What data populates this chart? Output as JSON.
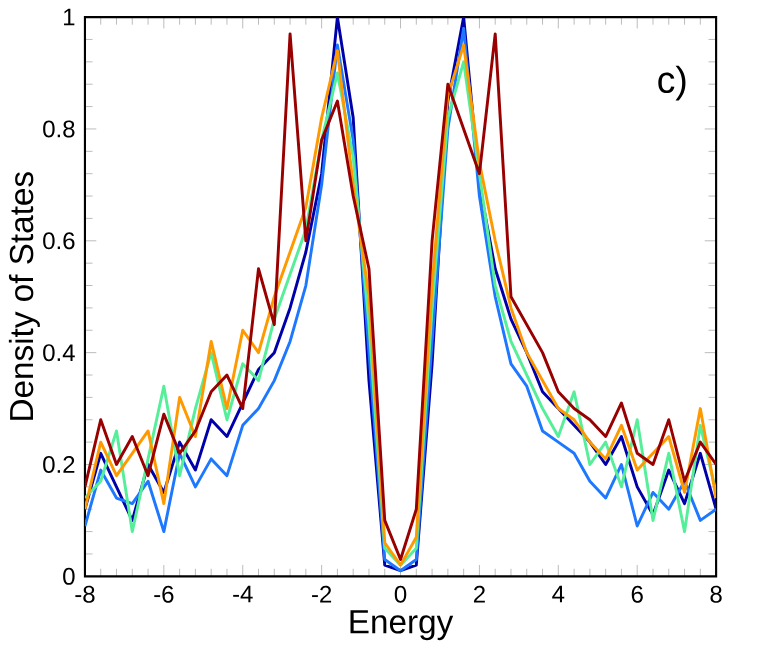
{
  "chart_data": {
    "type": "line",
    "xlabel": "Energy",
    "ylabel": "Density of States",
    "annotations": [
      "c)"
    ],
    "x": [
      -8,
      -7.6,
      -7.2,
      -6.8,
      -6.4,
      -6,
      -5.6,
      -5.2,
      -4.8,
      -4.4,
      -4,
      -3.6,
      -3.2,
      -2.8,
      -2.4,
      -2,
      -1.6,
      -1.2,
      -0.8,
      -0.4,
      0,
      0.4,
      0.8,
      1.2,
      1.6,
      2,
      2.4,
      2.8,
      3.2,
      3.6,
      4,
      4.4,
      4.8,
      5.2,
      5.6,
      6,
      6.4,
      6.8,
      7.2,
      7.6,
      8
    ],
    "series": [
      {
        "color": "#0000aa",
        "values": [
          0.12,
          0.22,
          0.16,
          0.1,
          0.2,
          0.15,
          0.24,
          0.19,
          0.28,
          0.25,
          0.31,
          0.37,
          0.4,
          0.48,
          0.58,
          0.72,
          1.0,
          0.82,
          0.35,
          0.02,
          0.01,
          0.02,
          0.38,
          0.85,
          1.0,
          0.7,
          0.55,
          0.46,
          0.4,
          0.33,
          0.3,
          0.27,
          0.24,
          0.2,
          0.25,
          0.16,
          0.11,
          0.19,
          0.13,
          0.22,
          0.12
        ]
      },
      {
        "color": "#1e78ff",
        "values": [
          0.09,
          0.19,
          0.14,
          0.13,
          0.17,
          0.08,
          0.22,
          0.16,
          0.21,
          0.18,
          0.27,
          0.3,
          0.35,
          0.42,
          0.52,
          0.7,
          0.95,
          0.78,
          0.4,
          0.03,
          0.01,
          0.03,
          0.42,
          0.8,
          0.98,
          0.68,
          0.5,
          0.38,
          0.34,
          0.26,
          0.24,
          0.22,
          0.17,
          0.14,
          0.2,
          0.09,
          0.15,
          0.12,
          0.17,
          0.1,
          0.12
        ]
      },
      {
        "color": "#55ee99",
        "values": [
          0.14,
          0.17,
          0.26,
          0.08,
          0.21,
          0.34,
          0.18,
          0.3,
          0.4,
          0.28,
          0.38,
          0.35,
          0.46,
          0.54,
          0.62,
          0.78,
          0.9,
          0.75,
          0.45,
          0.05,
          0.02,
          0.05,
          0.48,
          0.82,
          0.92,
          0.72,
          0.52,
          0.42,
          0.36,
          0.3,
          0.25,
          0.33,
          0.2,
          0.24,
          0.16,
          0.28,
          0.1,
          0.22,
          0.08,
          0.27,
          0.15
        ]
      },
      {
        "color": "#ff9900",
        "values": [
          0.12,
          0.24,
          0.18,
          0.22,
          0.26,
          0.13,
          0.32,
          0.25,
          0.42,
          0.3,
          0.44,
          0.4,
          0.5,
          0.58,
          0.66,
          0.82,
          0.94,
          0.7,
          0.5,
          0.06,
          0.02,
          0.07,
          0.52,
          0.86,
          0.95,
          0.74,
          0.6,
          0.48,
          0.4,
          0.35,
          0.3,
          0.28,
          0.24,
          0.21,
          0.27,
          0.19,
          0.22,
          0.25,
          0.15,
          0.3,
          0.14
        ]
      },
      {
        "color": "#990000",
        "values": [
          0.16,
          0.28,
          0.2,
          0.25,
          0.18,
          0.29,
          0.22,
          0.26,
          0.33,
          0.36,
          0.3,
          0.55,
          0.45,
          0.97,
          0.6,
          0.78,
          0.85,
          0.68,
          0.55,
          0.1,
          0.03,
          0.12,
          0.6,
          0.88,
          0.8,
          0.72,
          0.97,
          0.5,
          0.45,
          0.4,
          0.33,
          0.3,
          0.28,
          0.25,
          0.31,
          0.22,
          0.2,
          0.28,
          0.17,
          0.24,
          0.2
        ]
      }
    ],
    "xlim": [
      -8,
      8
    ],
    "ylim": [
      0,
      1
    ],
    "xticks": [
      -8,
      -6,
      -4,
      -2,
      0,
      2,
      4,
      6,
      8
    ],
    "yticks": [
      0,
      0.2,
      0.4,
      0.6,
      0.8,
      1
    ]
  }
}
